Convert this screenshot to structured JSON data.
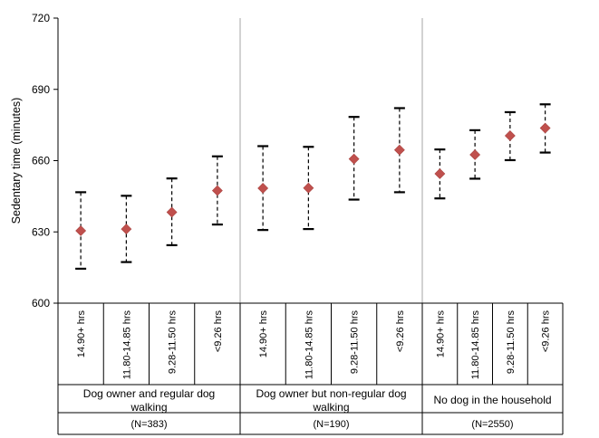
{
  "chart_data": {
    "type": "scatter",
    "title": "",
    "ylabel": "Sedentary time (minutes)",
    "ylim": [
      600,
      720
    ],
    "yticks": [
      600,
      630,
      660,
      690,
      720
    ],
    "grid": false,
    "legend": "none",
    "marker_color": "#c0504d",
    "groups": [
      {
        "label": "Dog owner and regular dog walking",
        "n_label": "(N=383)",
        "categories": [
          "14.90+ hrs",
          "11.80-14.85 hrs",
          "9.28-11.50 hrs",
          "<9.26 hrs"
        ],
        "values": [
          630.5,
          631.2,
          638.3,
          647.4
        ],
        "lower": [
          614.5,
          617.3,
          624.4,
          633.1
        ],
        "upper": [
          646.7,
          645.2,
          652.5,
          661.8
        ]
      },
      {
        "label": "Dog owner but non-regular dog walking",
        "n_label": "(N=190)",
        "categories": [
          "14.90+ hrs",
          "11.80-14.85 hrs",
          "9.28-11.50 hrs",
          "<9.26 hrs"
        ],
        "values": [
          648.4,
          648.5,
          660.7,
          664.5
        ],
        "lower": [
          630.8,
          631.2,
          643.6,
          646.7
        ],
        "upper": [
          666.1,
          665.8,
          678.4,
          682.1
        ]
      },
      {
        "label": "No dog in the household",
        "n_label": "(N=2550)",
        "categories": [
          "14.90+ hrs",
          "11.80-14.85 hrs",
          "9.28-11.50 hrs",
          "<9.26 hrs"
        ],
        "values": [
          654.5,
          662.5,
          670.5,
          673.7
        ],
        "lower": [
          644.1,
          652.4,
          660.2,
          663.4
        ],
        "upper": [
          664.7,
          672.8,
          680.4,
          683.7
        ]
      }
    ]
  }
}
